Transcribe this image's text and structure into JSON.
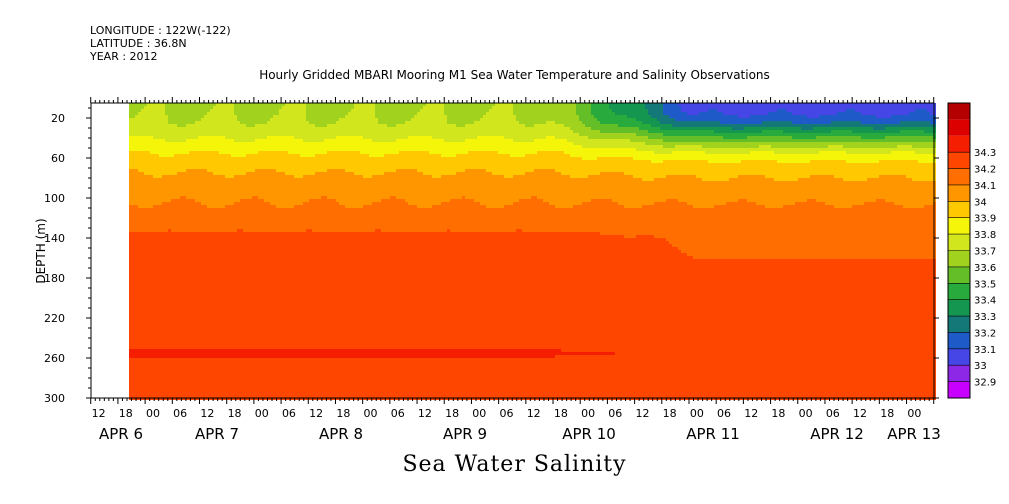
{
  "header": {
    "longitude": "LONGITUDE : 122W(-122)",
    "latitude": "LATITUDE : 36.8N",
    "year": "YEAR : 2012"
  },
  "chart_data": {
    "type": "heatmap",
    "title": "Hourly Gridded MBARI Mooring M1 Sea Water Temperature and Salinity Observations",
    "variable_label": "Sea Water Salinity",
    "ylabel": "DEPTH (m)",
    "ylim": [
      300,
      5
    ],
    "yticks": [
      20,
      60,
      100,
      140,
      180,
      220,
      260,
      300
    ],
    "x_hour_ticks": [
      "12",
      "18",
      "00",
      "06",
      "12",
      "18",
      "00",
      "06",
      "12",
      "18",
      "00",
      "06",
      "12",
      "18",
      "00",
      "06",
      "12",
      "18",
      "00",
      "06",
      "12",
      "18",
      "00",
      "06",
      "12",
      "18",
      "00",
      "06",
      "12",
      "18",
      "00"
    ],
    "x_date_labels": [
      "APR  6",
      "APR  7",
      "APR  8",
      "APR  9",
      "APR 10",
      "APR 11",
      "APR 12",
      "APR 13"
    ],
    "data_start_hour_offset": 6,
    "colorbar": {
      "levels": [
        32.9,
        33,
        33.1,
        33.2,
        33.3,
        33.4,
        33.5,
        33.6,
        33.7,
        33.8,
        33.9,
        34,
        34.1,
        34.2,
        34.3
      ],
      "colors": [
        "#c800ff",
        "#8c28e6",
        "#4646e6",
        "#1e5ac8",
        "#147878",
        "#149650",
        "#28aa3c",
        "#64be28",
        "#a0d21e",
        "#d2e61e",
        "#f5f50a",
        "#ffc800",
        "#ff9600",
        "#ff6e00",
        "#ff4600",
        "#f51e00",
        "#dc0000",
        "#b40000"
      ]
    },
    "profile_depths": [
      5,
      15,
      25,
      35,
      45,
      55,
      65,
      75,
      85,
      95,
      110,
      125,
      140,
      160,
      180,
      200,
      220,
      240,
      255,
      270,
      285,
      300
    ],
    "profile_early": [
      33.68,
      33.69,
      33.71,
      33.76,
      33.83,
      33.9,
      33.96,
      34.0,
      34.04,
      34.08,
      34.11,
      34.16,
      34.23,
      34.26,
      34.24,
      34.21,
      34.2,
      34.26,
      34.31,
      34.27,
      34.25,
      34.24
    ],
    "profile_late": [
      33.06,
      33.08,
      33.2,
      33.42,
      33.62,
      33.8,
      33.92,
      33.98,
      34.02,
      34.07,
      34.11,
      34.15,
      34.19,
      34.2,
      34.2,
      34.2,
      34.2,
      34.25,
      34.29,
      34.27,
      34.25,
      34.25
    ]
  }
}
